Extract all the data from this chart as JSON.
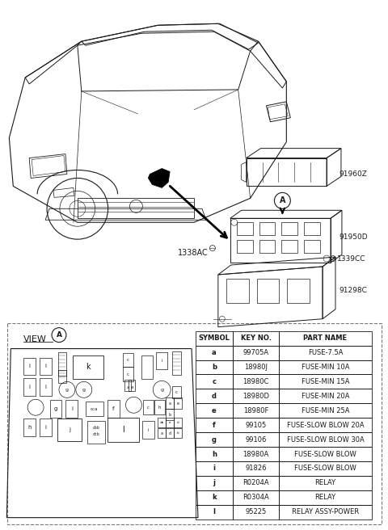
{
  "bg_color": "#ffffff",
  "lc": "#1a1a1a",
  "table_headers": [
    "SYMBOL",
    "KEY NO.",
    "PART NAME"
  ],
  "table_rows": [
    [
      "a",
      "99705A",
      "FUSE-7.5A"
    ],
    [
      "b",
      "18980J",
      "FUSE-MIN 10A"
    ],
    [
      "c",
      "18980C",
      "FUSE-MIN 15A"
    ],
    [
      "d",
      "18980D",
      "FUSE-MIN 20A"
    ],
    [
      "e",
      "18980F",
      "FUSE-MIN 25A"
    ],
    [
      "f",
      "99105",
      "FUSE-SLOW BLOW 20A"
    ],
    [
      "g",
      "99106",
      "FUSE-SLOW BLOW 30A"
    ],
    [
      "h",
      "18980A",
      "FUSE-SLOW BLOW"
    ],
    [
      "i",
      "91826",
      "FUSE-SLOW BLOW"
    ],
    [
      "j",
      "R0204A",
      "RELAY"
    ],
    [
      "k",
      "R0304A",
      "RELAY"
    ],
    [
      "l",
      "95225",
      "RELAY ASSY-POWER"
    ]
  ],
  "part_labels": [
    "91960Z",
    "91950D",
    "1338AC",
    "1339CC",
    "91298C"
  ],
  "view_label": "VIEW",
  "circle_label": "A"
}
